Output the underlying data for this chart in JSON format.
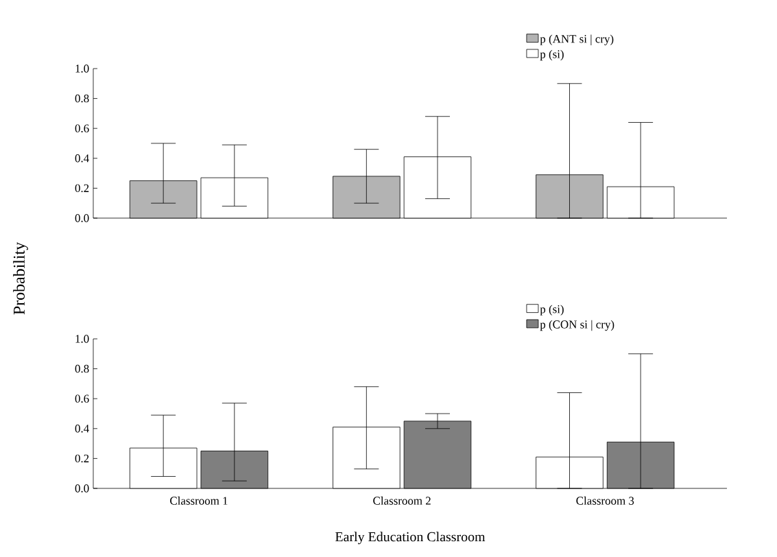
{
  "chart_data": [
    {
      "type": "bar",
      "ylabel": "Probability",
      "categories": [
        null,
        null,
        null
      ],
      "tick_labels": "y",
      "legend": "top right",
      "ylim": [
        0,
        1.0
      ],
      "yticks": [
        {
          "value": 0,
          "label": "0.0"
        },
        {
          "value": 0.2,
          "label": "0.2"
        },
        {
          "value": 0.4,
          "label": "0.4"
        },
        {
          "value": 0.6,
          "label": "0.6"
        },
        {
          "value": 0.8,
          "label": "0.8"
        },
        {
          "value": 1.0,
          "label": "1.0"
        }
      ],
      "series": [
        {
          "name": "p (ANT si | cry)",
          "color": "#b3b3b3",
          "values": [
            0.25,
            0.28,
            0.29
          ],
          "errors": [
            [
              0.1,
              0.5
            ],
            [
              0.1,
              0.46
            ],
            [
              0.0,
              0.9
            ]
          ]
        },
        {
          "name": "p (si)",
          "color": "#ffffff",
          "values": [
            0.27,
            0.41,
            0.21
          ],
          "errors": [
            [
              0.08,
              0.49
            ],
            [
              0.13,
              0.68
            ],
            [
              0.0,
              0.64
            ]
          ]
        }
      ]
    },
    {
      "type": "bar",
      "xlabel": "Early Education Classroom",
      "categories": [
        "Classroom 1",
        "Classroom 2",
        "Classroom 3"
      ],
      "legend": "top right",
      "ylim": [
        0,
        1.0
      ],
      "yticks": [
        {
          "value": 0,
          "label": "0.0"
        },
        {
          "value": 0.2,
          "label": "0.2"
        },
        {
          "value": 0.4,
          "label": "0.4"
        },
        {
          "value": 0.6,
          "label": "0.6"
        },
        {
          "value": 0.8,
          "label": "0.8"
        },
        {
          "value": 1.0,
          "label": "1.0"
        }
      ],
      "series": [
        {
          "name": "p (si)",
          "color": "#ffffff",
          "values": [
            0.27,
            0.41,
            0.21
          ],
          "errors": [
            [
              0.08,
              0.49
            ],
            [
              0.13,
              0.68
            ],
            [
              0.0,
              0.64
            ]
          ]
        },
        {
          "name": "p (CON si | cry)",
          "color": "#7f7f7f",
          "values": [
            0.25,
            0.45,
            0.31
          ],
          "errors": [
            [
              0.05,
              0.57
            ],
            [
              0.4,
              0.5
            ],
            [
              0.0,
              0.9
            ]
          ]
        }
      ]
    }
  ]
}
